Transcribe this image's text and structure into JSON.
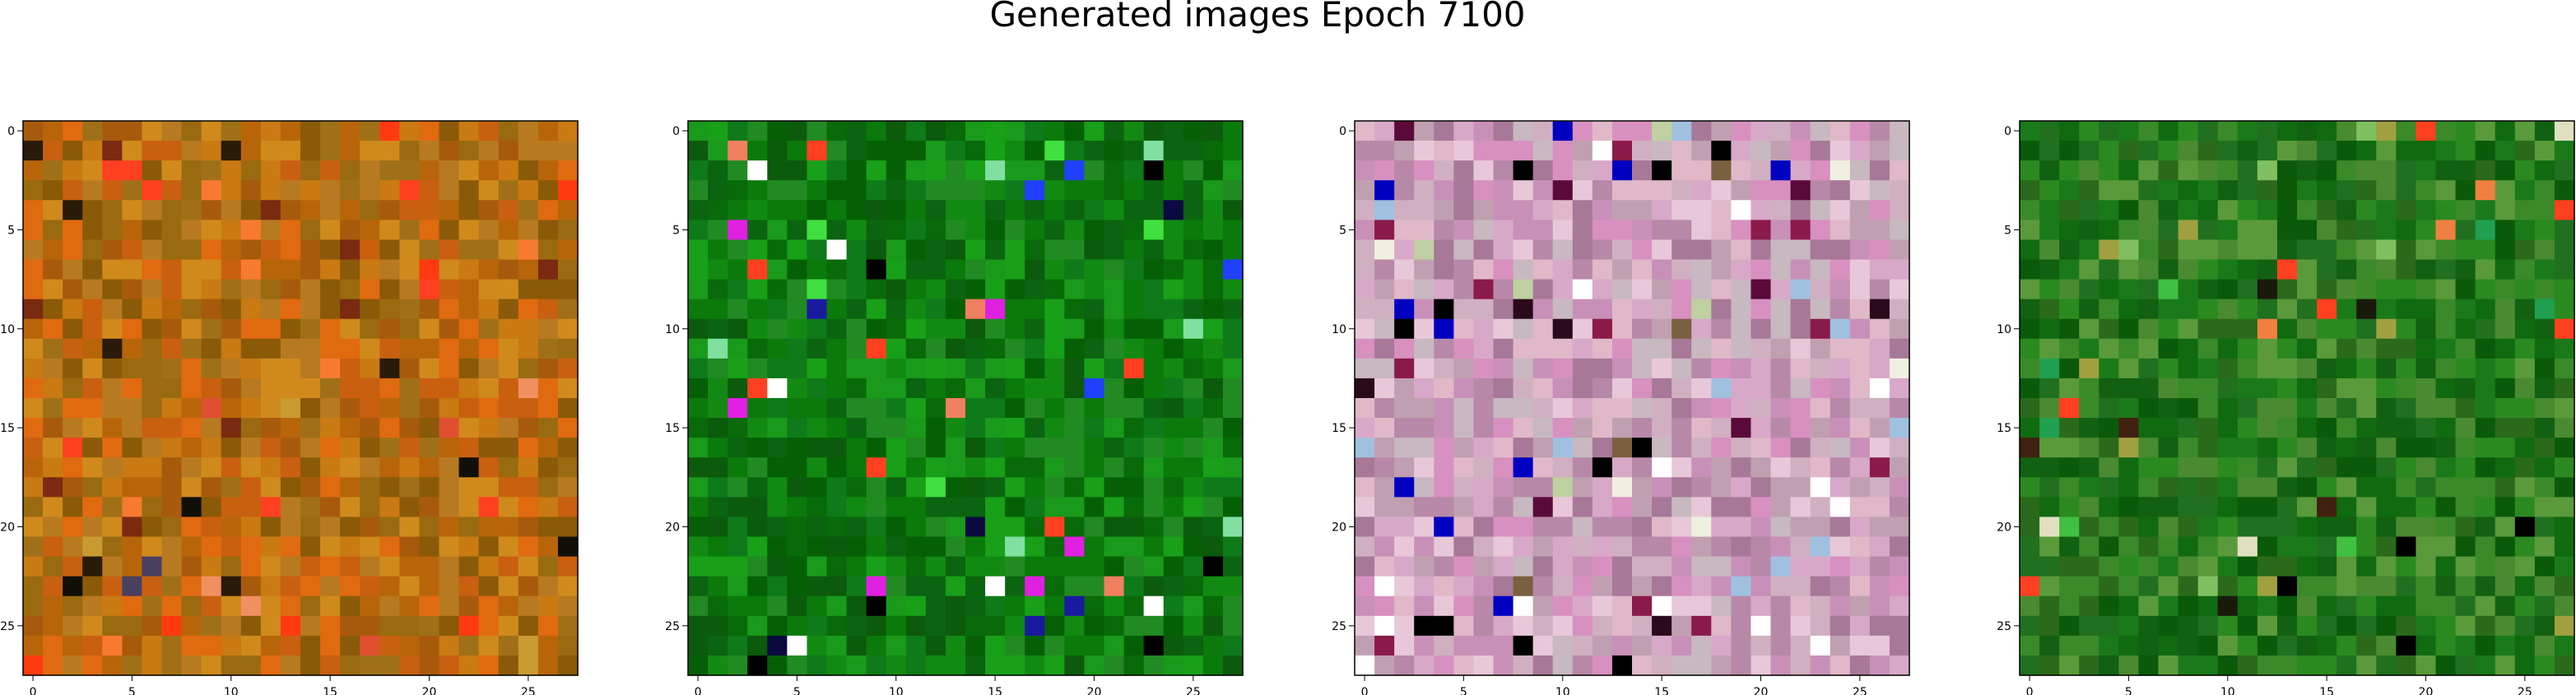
{
  "title": "Generated images Epoch 7100",
  "chart_data": {
    "type": "heatmap",
    "title": "Generated images Epoch 7100",
    "grid": false,
    "images": [
      {
        "name": "",
        "palette": [
          "#b8650a",
          "#c97a12",
          "#a85a0c",
          "#d08a1c",
          "#9a6a10",
          "#c86010",
          "#b87a20",
          "#a07018",
          "#e06a10",
          "#8a5a08"
        ],
        "accents": [
          "#ff4020",
          "#f87a30",
          "#ff3a10",
          "#e05030",
          "#c89a30",
          "#7a2a10",
          "#2a1a08",
          "#101008",
          "#f09060",
          "#4a4060"
        ],
        "seed": 11,
        "accent_rate": 0.07,
        "xlim": [
          0,
          27
        ],
        "ylim": [
          0,
          27
        ],
        "x_ticks": [
          0,
          5,
          10,
          15,
          20,
          25
        ],
        "y_ticks": [
          0,
          5,
          10,
          15,
          20,
          25
        ]
      },
      {
        "name": "",
        "palette": [
          "#0a7a0a",
          "#128a12",
          "#086a08",
          "#1a9a1a",
          "#0c5a0c",
          "#18a018",
          "#0a6410",
          "#228a22",
          "#0e7a1a",
          "#056005"
        ],
        "accents": [
          "#000000",
          "#0a0a40",
          "#1a1aa0",
          "#2040ff",
          "#80e0a0",
          "#ff4020",
          "#f08060",
          "#e020e0",
          "#ffffff",
          "#40e040"
        ],
        "seed": 23,
        "accent_rate": 0.06,
        "xlim": [
          0,
          27
        ],
        "ylim": [
          0,
          27
        ],
        "x_ticks": [
          0,
          5,
          10,
          15,
          20,
          25
        ],
        "y_ticks": [
          0,
          5,
          10,
          15,
          20,
          25
        ]
      },
      {
        "name": "",
        "palette": [
          "#d8a8c8",
          "#c890b8",
          "#e8c8d8",
          "#b888a8",
          "#d0b0c0",
          "#c0a0b0",
          "#e0b8c8",
          "#a87898",
          "#c8b8c0",
          "#d890c0"
        ],
        "accents": [
          "#000000",
          "#2a0a1a",
          "#5a0a3a",
          "#0000c0",
          "#ffffff",
          "#f0f0e0",
          "#8a1a4a",
          "#c0d0a0",
          "#a0c0e0",
          "#7a6040"
        ],
        "seed": 37,
        "accent_rate": 0.1,
        "xlim": [
          0,
          27
        ],
        "ylim": [
          0,
          27
        ],
        "x_ticks": [
          0,
          5,
          10,
          15,
          20,
          25
        ],
        "y_ticks": [
          0,
          5,
          10,
          15,
          20,
          25
        ]
      },
      {
        "name": "",
        "palette": [
          "#1a7a1a",
          "#2a8a20",
          "#106a10",
          "#3a8a2a",
          "#0a5a0a",
          "#4a8a30",
          "#207020",
          "#5a9a3a",
          "#126012",
          "#2a6a1a"
        ],
        "accents": [
          "#000000",
          "#1a1a0a",
          "#ff4020",
          "#f08040",
          "#e0e0c0",
          "#80c060",
          "#40c040",
          "#a0a040",
          "#402010",
          "#20a050"
        ],
        "seed": 53,
        "accent_rate": 0.06,
        "xlim": [
          0,
          27
        ],
        "ylim": [
          0,
          27
        ],
        "x_ticks": [
          0,
          5,
          10,
          15,
          20,
          25
        ],
        "y_ticks": [
          0,
          5,
          10,
          15,
          20,
          25
        ]
      }
    ]
  }
}
